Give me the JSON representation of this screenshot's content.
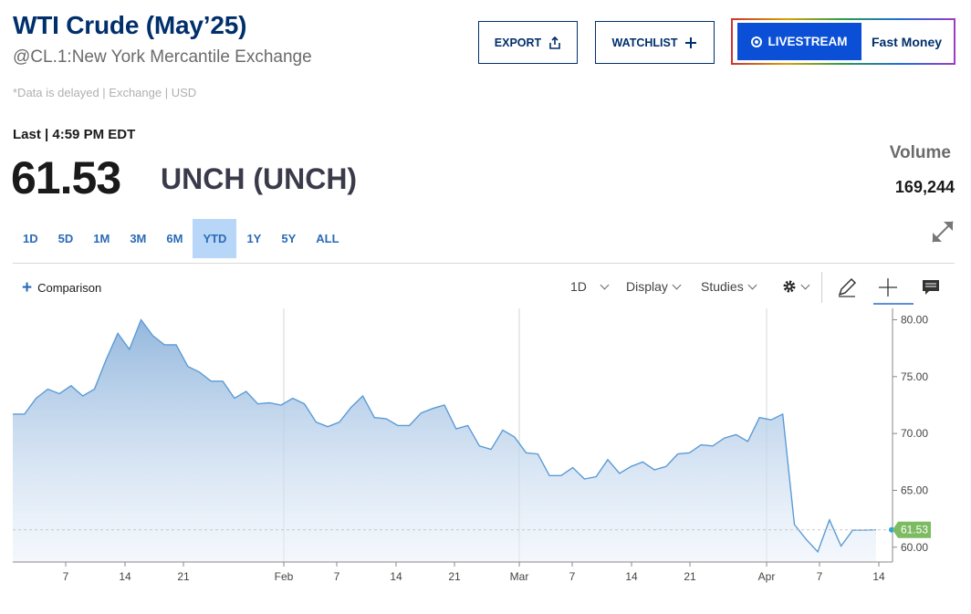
{
  "header": {
    "title": "WTI Crude (May’25)",
    "subtitle": "@CL.1:New York Mercantile Exchange",
    "note": "*Data is delayed | Exchange | USD"
  },
  "actions": {
    "export_label": "EXPORT",
    "watchlist_label": "WATCHLIST",
    "livestream_label": "LIVESTREAM",
    "livestream_show": "Fast Money"
  },
  "quote": {
    "last_label": "Last | 4:59 PM EDT",
    "price": "61.53",
    "change": "UNCH (UNCH)",
    "volume_label": "Volume",
    "volume_value": "169,244"
  },
  "ranges": [
    {
      "label": "1D"
    },
    {
      "label": "5D"
    },
    {
      "label": "1M"
    },
    {
      "label": "3M"
    },
    {
      "label": "6M"
    },
    {
      "label": "YTD",
      "active": true
    },
    {
      "label": "1Y"
    },
    {
      "label": "5Y"
    },
    {
      "label": "ALL"
    }
  ],
  "toolbar": {
    "comparison_label": "Comparison",
    "interval_label": "1D",
    "display_label": "Display",
    "studies_label": "Studies"
  },
  "colors": {
    "brand": "#002f6c",
    "accent": "#0a4fd6",
    "line": "#5b9bd5",
    "last_badge": "#7dbb63"
  },
  "chart_data": {
    "type": "area",
    "y_ticks": [
      "80.00",
      "75.00",
      "70.00",
      "65.00",
      "60.00"
    ],
    "ylim": [
      58.7,
      81
    ],
    "x_ticks": [
      "7",
      "14",
      "21",
      "Feb",
      "7",
      "14",
      "21",
      "Mar",
      "7",
      "14",
      "21",
      "Apr",
      "7",
      "14"
    ],
    "last_value_label": "61.53",
    "series": [
      {
        "values": [
          71.7,
          71.7,
          73.1,
          73.9,
          73.5,
          74.2,
          73.3,
          73.9,
          76.5,
          78.8,
          77.4,
          80.0,
          78.6,
          77.8,
          77.8,
          75.9,
          75.4,
          74.6,
          74.6,
          73.1,
          73.7,
          72.6,
          72.7,
          72.5,
          73.1,
          72.6,
          71.0,
          70.6,
          71.0,
          72.3,
          73.3,
          71.4,
          71.3,
          70.7,
          70.7,
          71.8,
          72.2,
          72.5,
          70.4,
          70.7,
          68.9,
          68.6,
          70.3,
          69.7,
          68.3,
          68.2,
          66.3,
          66.3,
          67.0,
          66.0,
          66.2,
          67.7,
          66.5,
          67.1,
          67.5,
          66.8,
          67.1,
          68.2,
          68.3,
          69.0,
          68.9,
          69.6,
          69.9,
          69.3,
          71.4,
          71.2,
          71.7,
          62.0,
          60.7,
          59.6,
          62.4,
          60.1,
          61.5,
          61.5,
          61.53
        ]
      }
    ]
  }
}
